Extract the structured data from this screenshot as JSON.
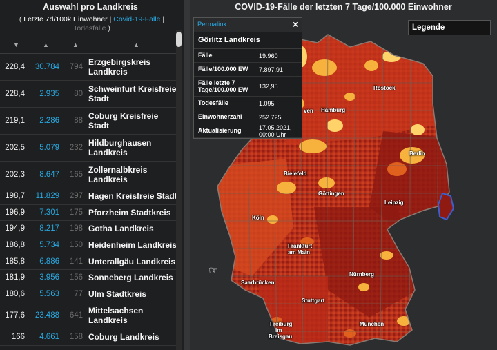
{
  "left": {
    "title": "Auswahl pro Landkreis",
    "subtitle": {
      "open": "( ",
      "active": "Letzte 7d/100k Einwohner",
      "sep1": " | ",
      "link": "Covid-19-Fälle",
      "sep2": " | ",
      "muted": "Todesfälle",
      "close": " )"
    },
    "rows": [
      {
        "inc": "228,4",
        "cases": "30.784",
        "deaths": "794",
        "name1": "Erzgebirgskreis",
        "name2": "Landkreis"
      },
      {
        "inc": "228,4",
        "cases": "2.935",
        "deaths": "80",
        "name1": "Schweinfurt Kreisfreie",
        "name2": "Stadt"
      },
      {
        "inc": "219,1",
        "cases": "2.286",
        "deaths": "88",
        "name1": "Coburg Kreisfreie",
        "name2": "Stadt"
      },
      {
        "inc": "202,5",
        "cases": "5.079",
        "deaths": "232",
        "name1": "Hildburghausen",
        "name2": "Landkreis"
      },
      {
        "inc": "202,3",
        "cases": "8.647",
        "deaths": "165",
        "name1": "Zollernalbkreis",
        "name2": "Landkreis"
      },
      {
        "inc": "198,7",
        "cases": "11.829",
        "deaths": "297",
        "name1": "Hagen Kreisfreie Stadt",
        "name2": ""
      },
      {
        "inc": "196,9",
        "cases": "7.301",
        "deaths": "175",
        "name1": "Pforzheim Stadtkreis",
        "name2": ""
      },
      {
        "inc": "194,9",
        "cases": "8.217",
        "deaths": "198",
        "name1": "Gotha Landkreis",
        "name2": ""
      },
      {
        "inc": "186,8",
        "cases": "5.734",
        "deaths": "150",
        "name1": "Heidenheim Landkreis",
        "name2": ""
      },
      {
        "inc": "185,8",
        "cases": "6.886",
        "deaths": "141",
        "name1": "Unterallgäu Landkreis",
        "name2": ""
      },
      {
        "inc": "181,9",
        "cases": "3.956",
        "deaths": "156",
        "name1": "Sonneberg Landkreis",
        "name2": ""
      },
      {
        "inc": "180,6",
        "cases": "5.563",
        "deaths": "77",
        "name1": "Ulm Stadtkreis",
        "name2": ""
      },
      {
        "inc": "177,6",
        "cases": "23.488",
        "deaths": "641",
        "name1": "Mittelsachsen",
        "name2": "Landkreis"
      },
      {
        "inc": "166",
        "cases": "4.661",
        "deaths": "158",
        "name1": "Coburg Landkreis",
        "name2": ""
      }
    ],
    "sort_icons": [
      "sort-desc-icon",
      "sort-icon",
      "sort-icon",
      "sort-icon"
    ]
  },
  "map": {
    "title": "COVID-19-Fälle der letzten 7 Tage/100.000 Einwohner",
    "legend_label": "Legende",
    "cities": [
      "Rostock",
      "Hamburg",
      "Berlin",
      "Bielefeld",
      "Göttingen",
      "Leipzig",
      "Köln",
      "Frankfurt",
      "am Main",
      "Nürnberg",
      "Saarbrücken",
      "Stuttgart",
      "München",
      "Freiburg",
      "im",
      "Breisgau",
      "Hannover"
    ],
    "colors": {
      "darkred": "#8e1a12",
      "red": "#c8361c",
      "orange": "#e0611e",
      "yellow": "#f6b23c",
      "lightyellow": "#ffd26a",
      "border": "#7a6a62",
      "highlight": "#3a5fd0"
    }
  },
  "popup": {
    "permalink": "Permalink",
    "close": "×",
    "title": "Görlitz Landkreis",
    "rows": [
      {
        "key": "Fälle",
        "value": "19.960"
      },
      {
        "key": "Fälle/100.000 EW",
        "value": "7.897,91"
      },
      {
        "key": "Fälle letzte 7 Tage/100.000 EW",
        "value": "132,95"
      },
      {
        "key": "Todesfälle",
        "value": "1.095"
      },
      {
        "key": "Einwohnerzahl",
        "value": "252.725"
      },
      {
        "key": "Aktualisierung",
        "value": "17.05.2021, 00:00 Uhr"
      }
    ]
  }
}
